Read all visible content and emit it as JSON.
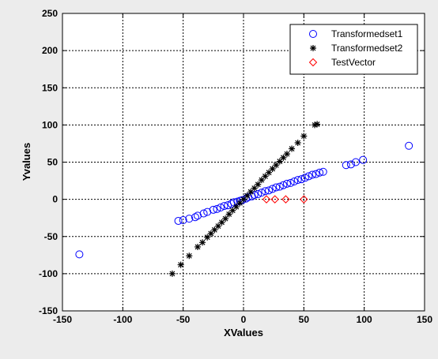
{
  "chart_data": {
    "type": "scatter",
    "xlabel": "XValues",
    "ylabel": "Yvalues",
    "xlim": [
      -150,
      150
    ],
    "ylim": [
      -150,
      250
    ],
    "xticks": [
      "-150",
      "-100",
      "-50",
      "0",
      "50",
      "100",
      "150"
    ],
    "yticks": [
      "-150",
      "-100",
      "-50",
      "0",
      "50",
      "100",
      "150",
      "200",
      "250"
    ],
    "grid": true,
    "grid_style": "dotted",
    "legend_position": "top-right",
    "series": [
      {
        "name": "Transformedset1",
        "marker": "circle",
        "color": "#0000ff",
        "points": [
          [
            -136,
            -74
          ],
          [
            -54,
            -29
          ],
          [
            -50,
            -28
          ],
          [
            -45,
            -26
          ],
          [
            -40,
            -24
          ],
          [
            -38,
            -22
          ],
          [
            -33,
            -19
          ],
          [
            -30,
            -17
          ],
          [
            -25,
            -14
          ],
          [
            -22,
            -13
          ],
          [
            -19,
            -11
          ],
          [
            -16,
            -9
          ],
          [
            -13,
            -8
          ],
          [
            -10,
            -6
          ],
          [
            -8,
            -4
          ],
          [
            -5,
            -3
          ],
          [
            -3,
            -2
          ],
          [
            -1,
            -1
          ],
          [
            2,
            1
          ],
          [
            4,
            3
          ],
          [
            7,
            4
          ],
          [
            9,
            6
          ],
          [
            12,
            7
          ],
          [
            15,
            9
          ],
          [
            18,
            11
          ],
          [
            21,
            12
          ],
          [
            24,
            14
          ],
          [
            27,
            16
          ],
          [
            30,
            17
          ],
          [
            33,
            19
          ],
          [
            36,
            21
          ],
          [
            39,
            22
          ],
          [
            42,
            24
          ],
          [
            45,
            26
          ],
          [
            48,
            27
          ],
          [
            51,
            29
          ],
          [
            54,
            31
          ],
          [
            57,
            33
          ],
          [
            60,
            34
          ],
          [
            63,
            36
          ],
          [
            66,
            37
          ],
          [
            85,
            46
          ],
          [
            89,
            47
          ],
          [
            93,
            50
          ],
          [
            99,
            53
          ],
          [
            137,
            72
          ]
        ]
      },
      {
        "name": "Transformedset2",
        "marker": "star",
        "color": "#000000",
        "points": [
          [
            -59,
            -100
          ],
          [
            -52,
            -88
          ],
          [
            -45,
            -76
          ],
          [
            -38,
            -64
          ],
          [
            -34,
            -58
          ],
          [
            -30,
            -51
          ],
          [
            -27,
            -46
          ],
          [
            -24,
            -41
          ],
          [
            -21,
            -36
          ],
          [
            -18,
            -31
          ],
          [
            -15,
            -26
          ],
          [
            -12,
            -20
          ],
          [
            -9,
            -15
          ],
          [
            -6,
            -10
          ],
          [
            -3,
            -5
          ],
          [
            0,
            0
          ],
          [
            3,
            5
          ],
          [
            6,
            10
          ],
          [
            9,
            15
          ],
          [
            12,
            20
          ],
          [
            15,
            26
          ],
          [
            18,
            31
          ],
          [
            21,
            36
          ],
          [
            24,
            41
          ],
          [
            27,
            46
          ],
          [
            30,
            51
          ],
          [
            33,
            56
          ],
          [
            36,
            61
          ],
          [
            40,
            68
          ],
          [
            45,
            76
          ],
          [
            50,
            85
          ],
          [
            59,
            100
          ],
          [
            61,
            101
          ]
        ]
      },
      {
        "name": "TestVector",
        "marker": "diamond",
        "color": "#ff0000",
        "points": [
          [
            19,
            0
          ],
          [
            26,
            0
          ],
          [
            35,
            0
          ],
          [
            50,
            0
          ]
        ]
      }
    ]
  }
}
